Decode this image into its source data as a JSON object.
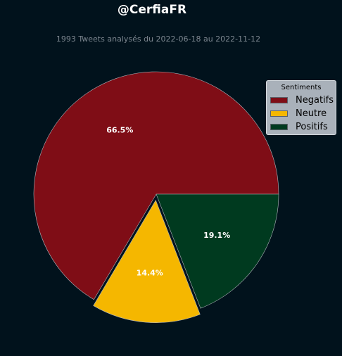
{
  "title": "@CerfiaFR",
  "subtitle": "1993 Tweets analysés du 2022-06-18 au 2022-11-12",
  "chart_data": {
    "type": "pie",
    "legend_title": "Sentiments",
    "legend_position": "top-right",
    "start_angle_deg": 0,
    "direction": "counterclockwise",
    "slices": [
      {
        "name": "Negatifs",
        "value": 66.5,
        "label": "66.5%",
        "color": "#7f0d16",
        "explode": 0.0
      },
      {
        "name": "Neutre",
        "value": 14.4,
        "label": "14.4%",
        "color": "#f5b700",
        "explode": 0.05
      },
      {
        "name": "Positifs",
        "value": 19.1,
        "label": "19.1%",
        "color": "#003a1f",
        "explode": 0.0
      }
    ]
  },
  "colors": {
    "background": "#01121c",
    "slice_edge": "#b0b7bd",
    "label_text": "#ffffff"
  }
}
